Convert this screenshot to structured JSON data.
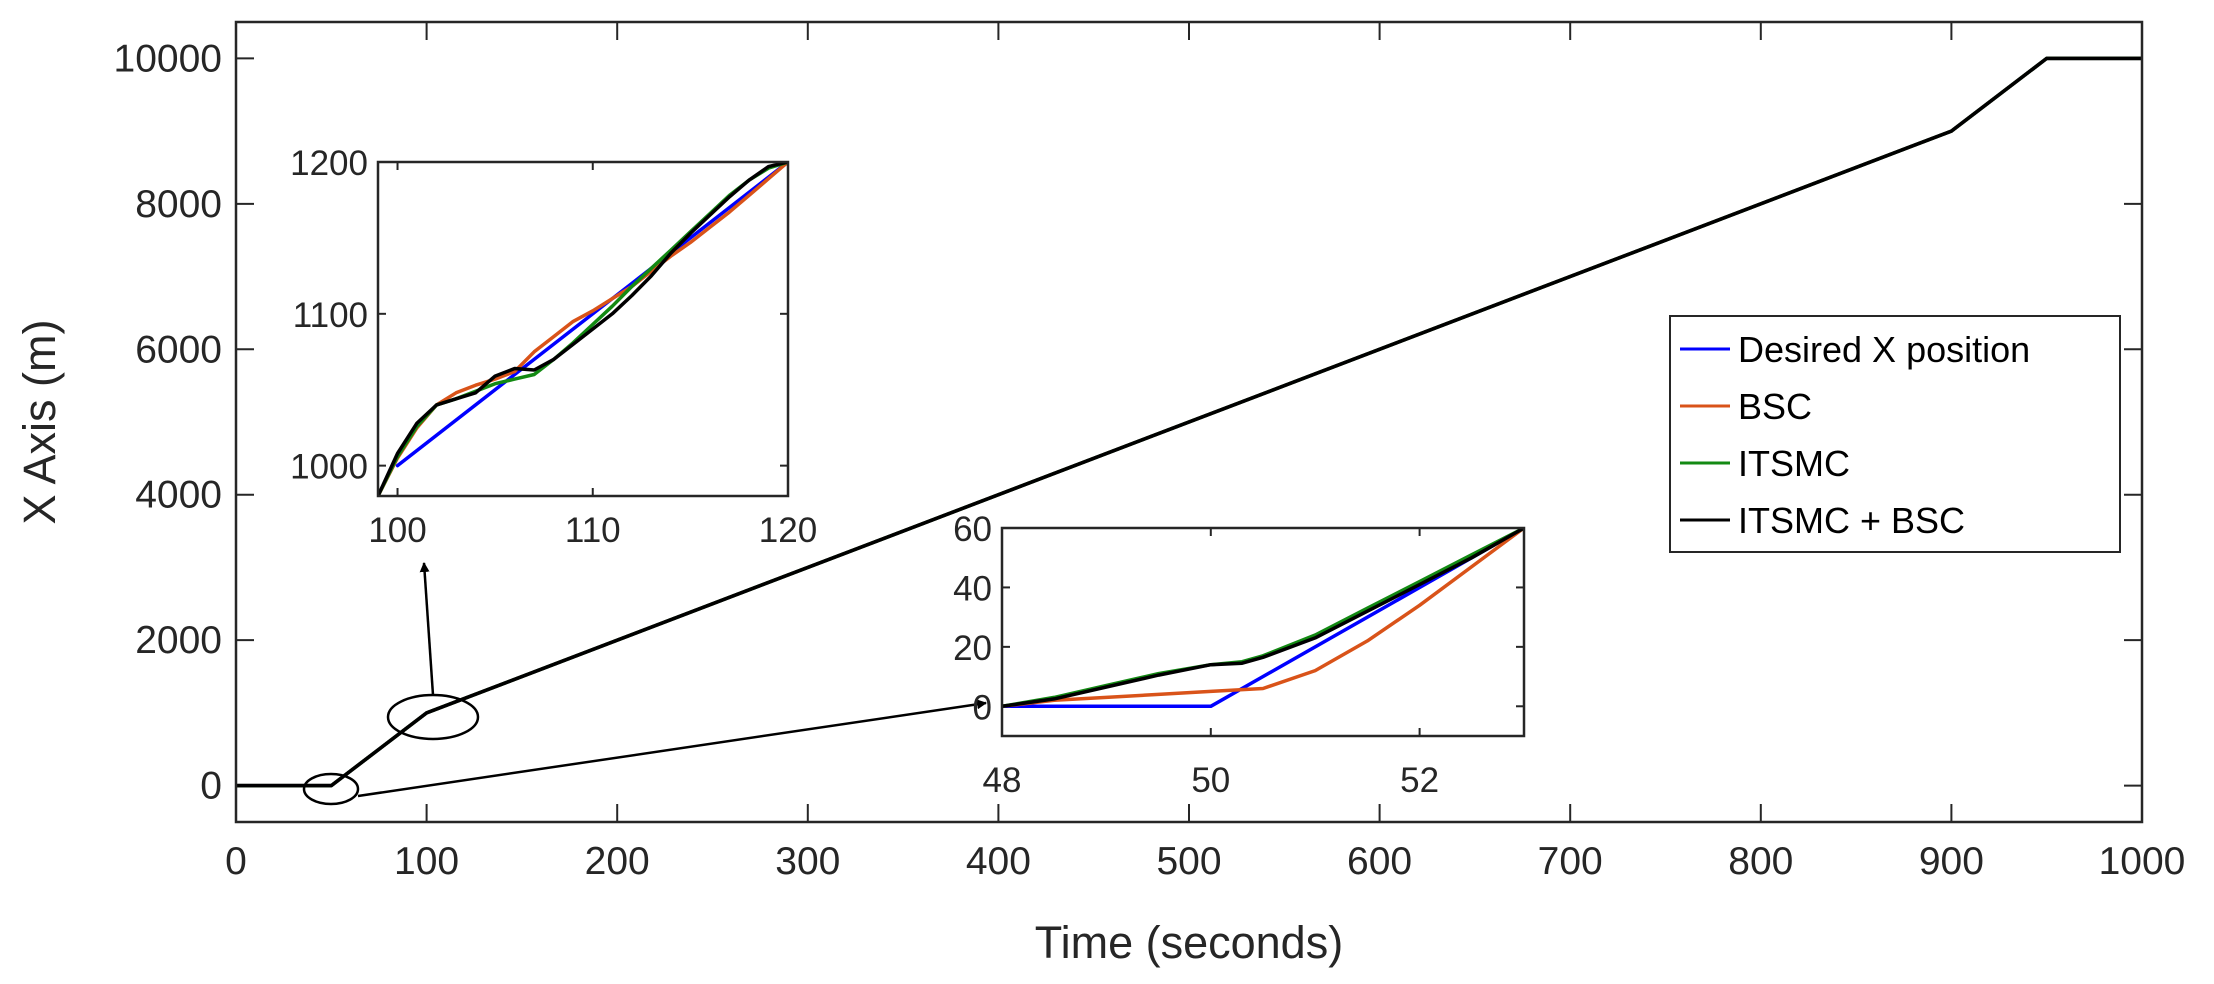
{
  "colors": {
    "desired": "#0000ff",
    "bsc": "#d95319",
    "itsmc": "#138a13",
    "itsmc_bsc": "#000000",
    "axis": "#262626"
  },
  "chart_data": {
    "type": "line",
    "xlabel": "Time (seconds)",
    "ylabel": "X Axis (m)",
    "xlim": [
      0,
      1000
    ],
    "ylim": [
      -500,
      10500
    ],
    "xticks": [
      "0",
      "100",
      "200",
      "300",
      "400",
      "500",
      "600",
      "700",
      "800",
      "900",
      "1000"
    ],
    "yticks": [
      "0",
      "2000",
      "4000",
      "6000",
      "8000",
      "10000"
    ],
    "legend": {
      "position": "right",
      "entries": [
        "Desired X position",
        "BSC",
        "ITSMC",
        "ITSMC + BSC"
      ]
    },
    "series": [
      {
        "name": "Desired X position",
        "color_key": "desired",
        "x": [
          0,
          50,
          100,
          900,
          950,
          1000
        ],
        "y": [
          0,
          0,
          1000,
          9000,
          10000,
          10000
        ]
      },
      {
        "name": "BSC",
        "color_key": "bsc",
        "x": [
          0,
          50,
          100,
          900,
          950,
          1000
        ],
        "y": [
          0,
          0,
          1000,
          9000,
          10000,
          10000
        ]
      },
      {
        "name": "ITSMC",
        "color_key": "itsmc",
        "x": [
          0,
          50,
          100,
          900,
          950,
          1000
        ],
        "y": [
          0,
          0,
          1000,
          9000,
          10000,
          10000
        ]
      },
      {
        "name": "ITSMC + BSC",
        "color_key": "itsmc_bsc",
        "x": [
          0,
          50,
          100,
          900,
          950,
          1000
        ],
        "y": [
          0,
          0,
          1000,
          9000,
          10000,
          10000
        ]
      }
    ],
    "insets": [
      {
        "name": "inset-zoom-100-120",
        "xlim": [
          99,
          120
        ],
        "ylim": [
          980,
          1200
        ],
        "xticks": [
          "100",
          "110",
          "120"
        ],
        "yticks": [
          "1000",
          "1100",
          "1200"
        ],
        "series": [
          {
            "name": "Desired X position",
            "color_key": "desired",
            "x": [
              100,
              120
            ],
            "y": [
              1000,
              1200
            ]
          },
          {
            "name": "BSC",
            "color_key": "bsc",
            "x": [
              99,
              100,
              101,
              102,
              103,
              104,
              105,
              106,
              107,
              108,
              109,
              110,
              111,
              112,
              113,
              114,
              115,
              116,
              117,
              118,
              119,
              120
            ],
            "y": [
              980,
              1005,
              1025,
              1040,
              1048,
              1053,
              1057,
              1062,
              1075,
              1085,
              1095,
              1102,
              1110,
              1118,
              1128,
              1138,
              1147,
              1157,
              1167,
              1178,
              1189,
              1200
            ]
          },
          {
            "name": "ITSMC",
            "color_key": "itsmc",
            "x": [
              99,
              100,
              101,
              102,
              103,
              104,
              105,
              106,
              107,
              108,
              109,
              110,
              111,
              112,
              113,
              114,
              115,
              116,
              117,
              118,
              119,
              120
            ],
            "y": [
              980,
              1006,
              1026,
              1040,
              1044,
              1049,
              1054,
              1057,
              1060,
              1070,
              1081,
              1093,
              1105,
              1118,
              1130,
              1142,
              1154,
              1166,
              1178,
              1188,
              1196,
              1200
            ]
          },
          {
            "name": "ITSMC + BSC",
            "color_key": "itsmc_bsc",
            "x": [
              99,
              100,
              101,
              102,
              103,
              104,
              105,
              106,
              107,
              108,
              109,
              110,
              111,
              112,
              113,
              114,
              115,
              116,
              117,
              118,
              119,
              120
            ],
            "y": [
              980,
              1008,
              1028,
              1040,
              1044,
              1048,
              1059,
              1064,
              1063,
              1070,
              1080,
              1090,
              1100,
              1112,
              1125,
              1140,
              1153,
              1165,
              1177,
              1188,
              1197,
              1200
            ]
          }
        ]
      },
      {
        "name": "inset-zoom-48-53",
        "xlim": [
          48,
          53
        ],
        "ylim": [
          -10,
          60
        ],
        "xticks": [
          "48",
          "50",
          "52"
        ],
        "yticks": [
          "0",
          "20",
          "40",
          "60"
        ],
        "series": [
          {
            "name": "Desired X position",
            "color_key": "desired",
            "x": [
              48,
              50,
              53
            ],
            "y": [
              0,
              0,
              60
            ]
          },
          {
            "name": "BSC",
            "color_key": "bsc",
            "x": [
              48,
              48.5,
              49,
              49.5,
              50,
              50.5,
              51,
              51.5,
              52,
              52.5,
              53
            ],
            "y": [
              0,
              2,
              3,
              4,
              5,
              6,
              12,
              22,
              34,
              47,
              60
            ]
          },
          {
            "name": "ITSMC",
            "color_key": "itsmc",
            "x": [
              48,
              48.5,
              49,
              49.5,
              50,
              50.3,
              50.5,
              51,
              51.5,
              52,
              52.5,
              53
            ],
            "y": [
              0,
              3,
              7,
              11,
              14,
              15,
              17,
              24,
              33,
              42,
              51,
              60
            ]
          },
          {
            "name": "ITSMC + BSC",
            "color_key": "itsmc_bsc",
            "x": [
              48,
              48.5,
              49,
              49.5,
              50,
              50.3,
              50.5,
              51,
              51.5,
              52,
              52.5,
              53
            ],
            "y": [
              0,
              2.5,
              6.5,
              10.5,
              14,
              14.5,
              16.5,
              23,
              32,
              41,
              50,
              60
            ]
          }
        ]
      }
    ]
  }
}
